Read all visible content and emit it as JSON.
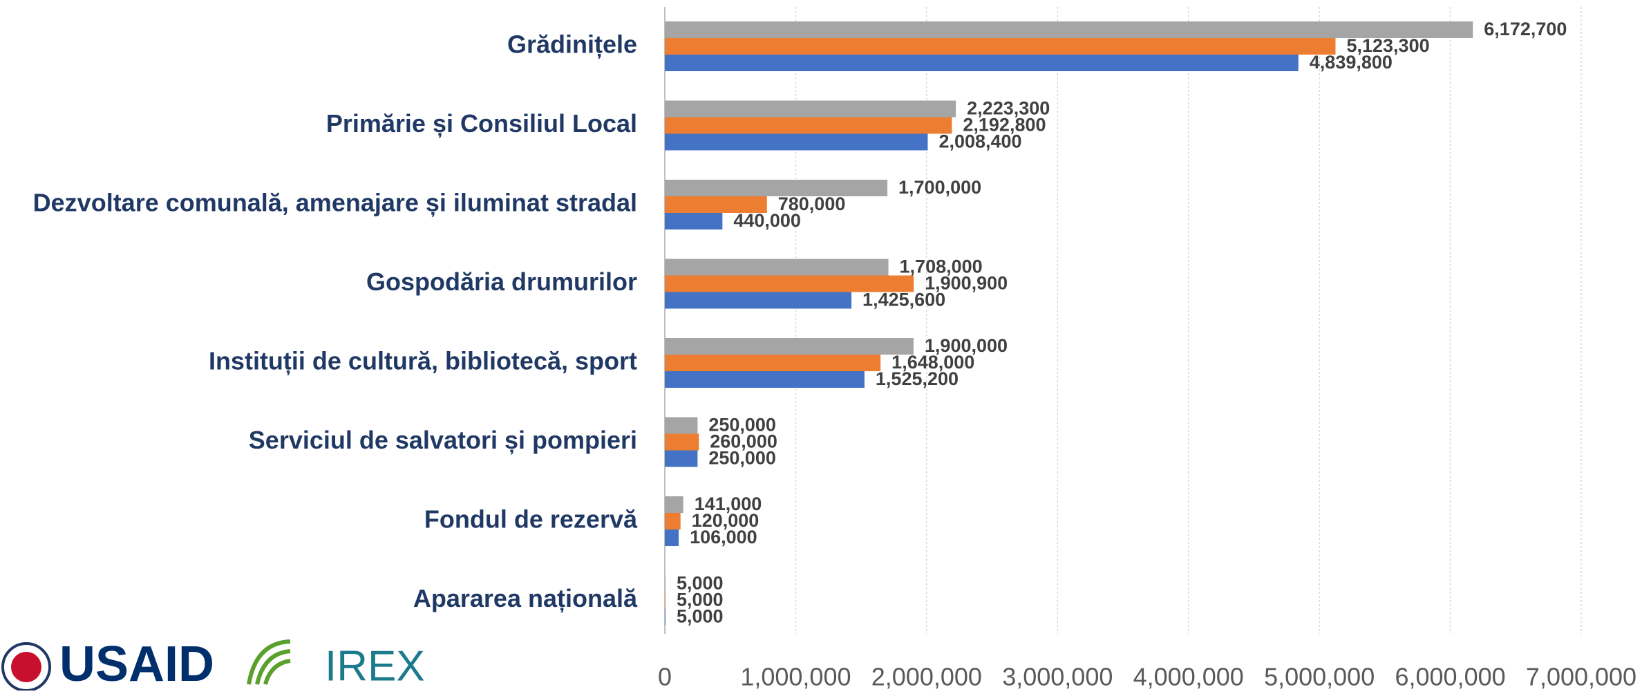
{
  "chart_data": {
    "type": "hbar",
    "categories": [
      "Grădinițele",
      "Primărie și Consiliul Local",
      "Dezvoltare comunală, amenajare și iluminat stradal",
      "Gospodăria drumurilor",
      "Instituții de cultură, bibliotecă, sport",
      "Serviciul de salvatori și pompieri ",
      "Fondul de rezervă",
      "Apararea națională"
    ],
    "series": [
      {
        "color": "#a5a5a5",
        "values": [
          6172700,
          2223300,
          1700000,
          1708000,
          1900000,
          250000,
          141000,
          5000
        ],
        "value_labels": [
          "6,172,700",
          "2,223,300",
          "1,700,000",
          "1,708,000",
          "1,900,000",
          "250,000",
          "141,000",
          "5,000"
        ]
      },
      {
        "color": "#ed7d31",
        "values": [
          5123300,
          2192800,
          780000,
          1900900,
          1648000,
          260000,
          120000,
          5000
        ],
        "value_labels": [
          "5,123,300",
          "2,192,800",
          "780,000",
          "1,900,900",
          "1,648,000",
          "260,000",
          "120,000",
          "5,000"
        ]
      },
      {
        "color": "#4472c4",
        "values": [
          4839800,
          2008400,
          440000,
          1425600,
          1525200,
          250000,
          106000,
          5000
        ],
        "value_labels": [
          "4,839,800",
          "2,008,400",
          "440,000",
          "1,425,600",
          "1,525,200",
          "250,000",
          "106,000",
          "5,000"
        ]
      }
    ],
    "xlim": [
      0,
      7000000
    ],
    "xticks": [
      0,
      {
        "value": 1000000,
        "label": "1,000,000"
      },
      {
        "value": 2000000,
        "label": "2,000,000"
      },
      {
        "value": 3000000,
        "label": "3,000,000"
      },
      {
        "value": 4000000,
        "label": "4,000,000"
      },
      {
        "value": 5000000,
        "label": "5,000,000"
      },
      {
        "value": 6000000,
        "label": "6,000,000"
      },
      {
        "value": 7000000,
        "label": "7,000,000"
      }
    ],
    "grid": true
  },
  "logos": [
    "USAID",
    "IREX"
  ]
}
